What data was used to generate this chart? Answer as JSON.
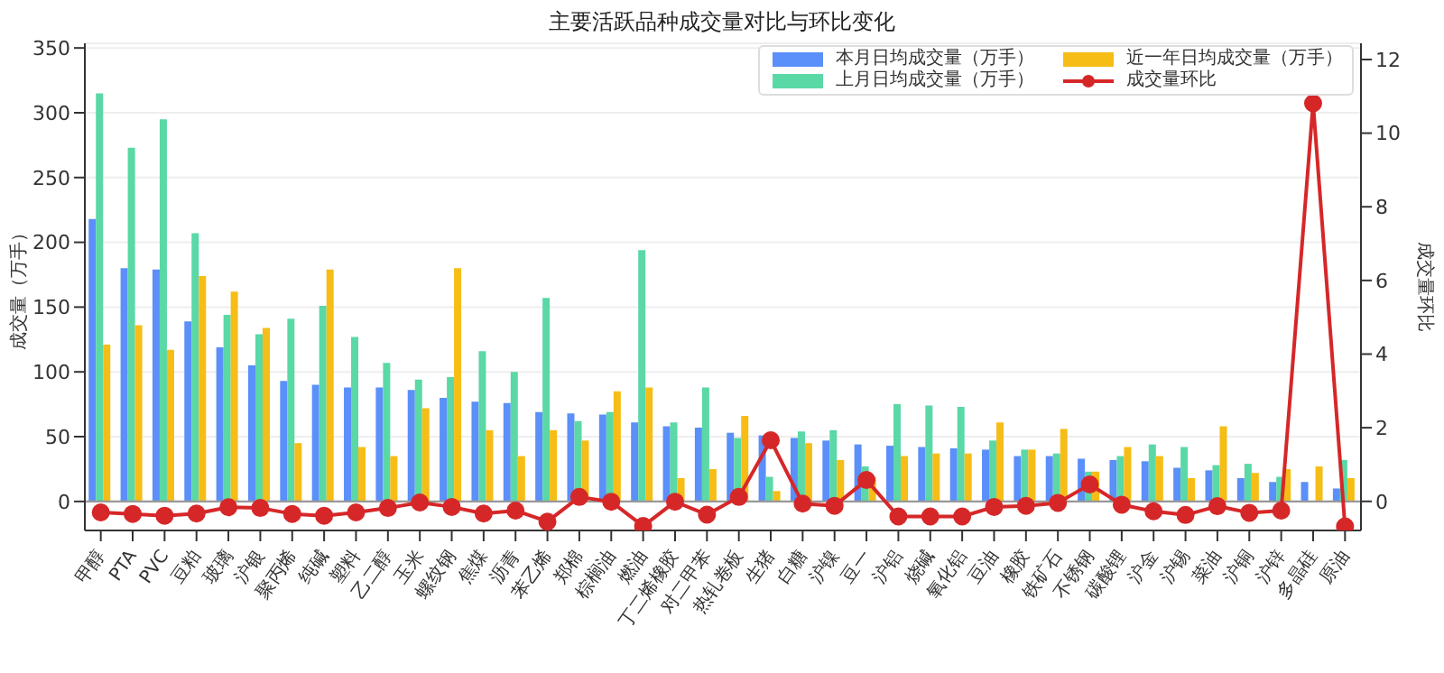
{
  "chart_data": {
    "type": "bar",
    "title": "主要活跃品种成交量对比与环比变化",
    "ylabel": "成交量（万手）",
    "y2label": "成交量环比",
    "categories": [
      "甲醇",
      "PTA",
      "PVC",
      "豆粕",
      "玻璃",
      "沪银",
      "聚丙烯",
      "纯碱",
      "塑料",
      "乙二醇",
      "玉米",
      "螺纹钢",
      "焦煤",
      "沥青",
      "苯乙烯",
      "郑棉",
      "棕榈油",
      "燃油",
      "丁二烯橡胶",
      "对二甲苯",
      "热轧卷板",
      "生猪",
      "白糖",
      "沪镍",
      "豆一",
      "沪铝",
      "烧碱",
      "氧化铝",
      "豆油",
      "橡胶",
      "铁矿石",
      "不锈钢",
      "碳酸锂",
      "沪金",
      "沪锡",
      "菜油",
      "沪铜",
      "沪锌",
      "多晶硅",
      "原油"
    ],
    "series": [
      {
        "name": "本月日均成交量（万手）",
        "color": "#5b8ff9",
        "values": [
          218,
          180,
          179,
          139,
          119,
          105,
          93,
          90,
          88,
          88,
          86,
          80,
          77,
          76,
          69,
          68,
          67,
          61,
          58,
          57,
          53,
          51,
          49,
          47,
          44,
          43,
          42,
          41,
          40,
          35,
          35,
          33,
          32,
          31,
          26,
          24,
          18,
          15,
          15,
          10
        ]
      },
      {
        "name": "上月日均成交量（万手）",
        "color": "#5ad8a6",
        "values": [
          315,
          273,
          295,
          207,
          144,
          129,
          141,
          151,
          127,
          107,
          94,
          96,
          116,
          100,
          157,
          62,
          69,
          194,
          61,
          88,
          49,
          19,
          54,
          55,
          27,
          75,
          74,
          73,
          47,
          40,
          37,
          23,
          35,
          44,
          42,
          28,
          29,
          19,
          null,
          32
        ]
      },
      {
        "name": "近一年日均成交量（万手）",
        "color": "#f6bd16",
        "values": [
          121,
          136,
          117,
          174,
          162,
          134,
          45,
          179,
          42,
          35,
          72,
          180,
          55,
          35,
          55,
          47,
          85,
          88,
          18,
          25,
          66,
          8,
          45,
          32,
          19,
          35,
          37,
          37,
          61,
          40,
          56,
          23,
          42,
          35,
          18,
          58,
          22,
          25,
          27,
          18
        ]
      },
      {
        "name": "成交量环比",
        "type": "line",
        "axis": "y2",
        "color": "#d62728",
        "marker": "circle",
        "values": [
          -0.3,
          -0.34,
          -0.39,
          -0.33,
          -0.16,
          -0.18,
          -0.34,
          -0.39,
          -0.3,
          -0.18,
          -0.03,
          -0.15,
          -0.33,
          -0.25,
          -0.55,
          0.12,
          -0.01,
          -0.67,
          -0.01,
          -0.36,
          0.12,
          1.66,
          -0.06,
          -0.12,
          0.58,
          -0.41,
          -0.41,
          -0.41,
          -0.15,
          -0.12,
          -0.04,
          0.46,
          -0.09,
          -0.27,
          -0.37,
          -0.13,
          -0.31,
          -0.25,
          10.81,
          -0.68
        ]
      }
    ],
    "ylim": [
      -22.4,
      353.6
    ],
    "yticks": [
      0,
      50,
      100,
      150,
      200,
      250,
      300,
      350
    ],
    "y2lim": [
      -0.79,
      12.44
    ],
    "y2ticks": [
      0,
      2,
      4,
      6,
      8,
      10,
      12
    ],
    "ref_lines": [
      {
        "axis": "y",
        "value": 0,
        "color": "#999999"
      }
    ],
    "grid": "y",
    "legend": "top right"
  }
}
